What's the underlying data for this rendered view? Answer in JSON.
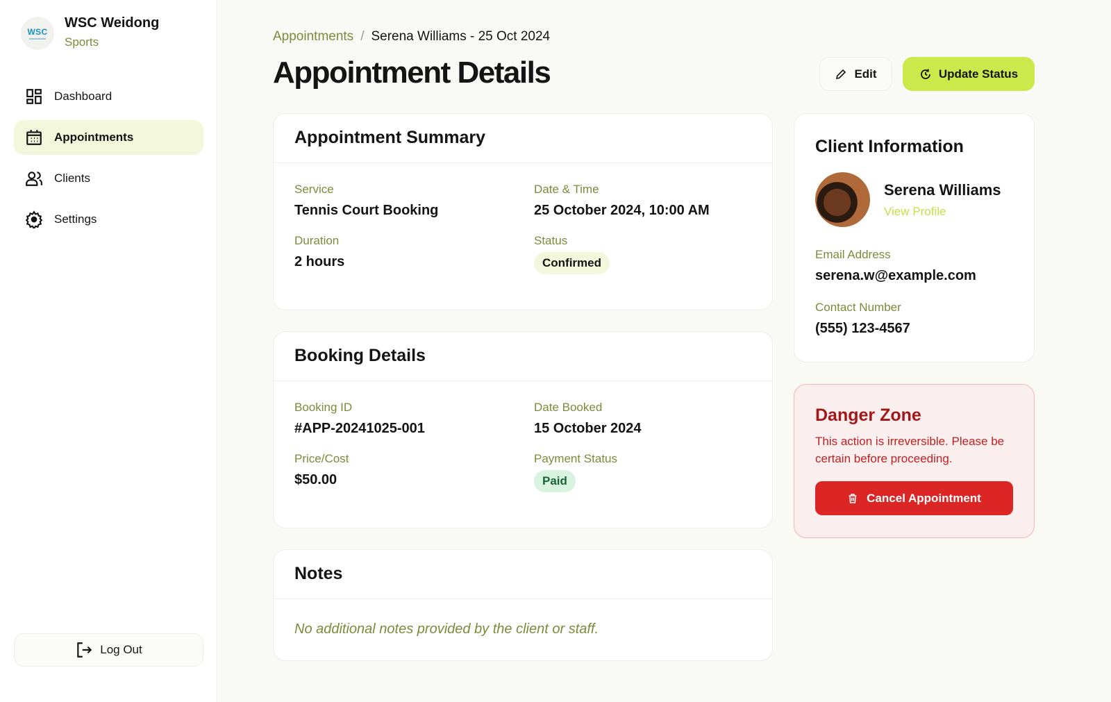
{
  "sidebar": {
    "logo_text": "WSC",
    "brand_name": "WSC Weidong",
    "brand_sub": "Sports",
    "items": [
      {
        "label": "Dashboard",
        "icon": "dashboard-icon"
      },
      {
        "label": "Appointments",
        "icon": "calendar-icon",
        "active": true
      },
      {
        "label": "Clients",
        "icon": "users-icon"
      },
      {
        "label": "Settings",
        "icon": "gear-icon"
      }
    ],
    "logout": "Log Out"
  },
  "header": {
    "breadcrumb_parent": "Appointments",
    "breadcrumb_sep": "/",
    "breadcrumb_current": "Serena Williams - 25 Oct 2024",
    "title": "Appointment Details",
    "edit": "Edit",
    "update_status": "Update Status"
  },
  "summary": {
    "title": "Appointment Summary",
    "service_label": "Service",
    "service": "Tennis Court Booking",
    "datetime_label": "Date & Time",
    "datetime": "25 October 2024, 10:00 AM",
    "duration_label": "Duration",
    "duration": "2 hours",
    "status_label": "Status",
    "status": "Confirmed"
  },
  "booking": {
    "title": "Booking Details",
    "id_label": "Booking ID",
    "id": "#APP-20241025-001",
    "booked_label": "Date Booked",
    "booked": "15 October 2024",
    "price_label": "Price/Cost",
    "price": "$50.00",
    "payment_label": "Payment Status",
    "payment": "Paid"
  },
  "notes": {
    "title": "Notes",
    "text": "No additional notes provided by the client or staff."
  },
  "client": {
    "title": "Client Information",
    "name": "Serena Williams",
    "view_profile": "View Profile",
    "email_label": "Email Address",
    "email": "serena.w@example.com",
    "phone_label": "Contact Number",
    "phone": "(555) 123-4567"
  },
  "danger": {
    "title": "Danger Zone",
    "text": "This action is irreversible. Please be certain before proceeding.",
    "cancel": "Cancel Appointment"
  },
  "colors": {
    "accent": "#cce84a",
    "label": "#7a8c3a",
    "danger": "#dc2626"
  }
}
